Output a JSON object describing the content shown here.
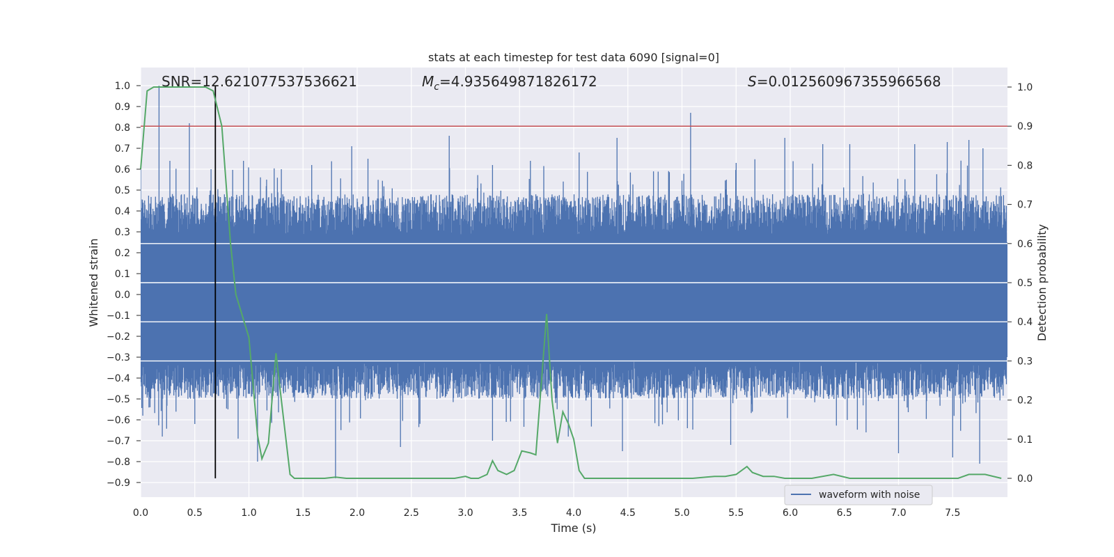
{
  "chart_data": {
    "type": "line",
    "title": "stats at each timestep for test data 6090 [signal=0]",
    "xlabel": "Time (s)",
    "ylabel_left": "Whitened strain",
    "ylabel_right": "Detection probability",
    "xlim": [
      0.0,
      8.0
    ],
    "ylim_left": [
      -0.97,
      1.09
    ],
    "ylim_right": [
      -0.05,
      1.05
    ],
    "xticks": [
      "0.0",
      "0.5",
      "1.0",
      "1.5",
      "2.0",
      "2.5",
      "3.0",
      "3.5",
      "4.0",
      "4.5",
      "5.0",
      "5.5",
      "6.0",
      "6.5",
      "7.0",
      "7.5"
    ],
    "yticks_left": [
      "1.0",
      "0.9",
      "0.8",
      "0.7",
      "0.6",
      "0.5",
      "0.4",
      "0.3",
      "0.2",
      "0.1",
      "0.0",
      "-0.1",
      "-0.2",
      "-0.3",
      "-0.4",
      "-0.5",
      "-0.6",
      "-0.7",
      "-0.8",
      "-0.9"
    ],
    "yticks_right": [
      "1.0",
      "0.9",
      "0.8",
      "0.7",
      "0.6",
      "0.5",
      "0.4",
      "0.3",
      "0.2",
      "0.1",
      "0.0"
    ],
    "annotations": {
      "snr": "SNR=12.621077537536621",
      "mc_symbol": "M",
      "mc_sub": "c",
      "mc_value": "=4.935649871826172",
      "s_symbol": "S",
      "s_value": "=0.012560967355966568"
    },
    "legend": {
      "label": "waveform with noise",
      "placement": "lower-right"
    },
    "threshold_line": {
      "value_right_axis": 0.9,
      "color": "#c44e52"
    },
    "vertical_marker": {
      "x": 0.69,
      "y_range_left": [
        -0.88,
        1.0
      ],
      "color": "#000000"
    },
    "colors": {
      "waveform": "#4c72b0",
      "probability": "#55a868",
      "plot_bg": "#eaeaf2",
      "grid": "#ffffff"
    },
    "waveform_series": {
      "name": "waveform with noise",
      "band_peaks": [
        {
          "x": 0.17,
          "y": 1.0
        },
        {
          "x": 0.45,
          "y": 0.82
        },
        {
          "x": 0.0,
          "y": 0.6
        },
        {
          "x": 0.27,
          "y": 0.64
        },
        {
          "x": 0.65,
          "y": 0.6
        },
        {
          "x": 0.95,
          "y": 0.64
        },
        {
          "x": 1.3,
          "y": 0.6
        },
        {
          "x": 1.58,
          "y": 0.62
        },
        {
          "x": 1.95,
          "y": 0.71
        },
        {
          "x": 2.1,
          "y": 0.65
        },
        {
          "x": 2.85,
          "y": 0.76
        },
        {
          "x": 3.25,
          "y": 0.62
        },
        {
          "x": 3.6,
          "y": 0.64
        },
        {
          "x": 4.05,
          "y": 0.68
        },
        {
          "x": 4.4,
          "y": 0.75
        },
        {
          "x": 5.08,
          "y": 0.87
        },
        {
          "x": 5.5,
          "y": 0.63
        },
        {
          "x": 5.95,
          "y": 0.75
        },
        {
          "x": 6.3,
          "y": 0.72
        },
        {
          "x": 6.55,
          "y": 0.72
        },
        {
          "x": 7.15,
          "y": 0.72
        },
        {
          "x": 7.45,
          "y": 0.73
        },
        {
          "x": 7.65,
          "y": 0.74
        },
        {
          "x": 7.78,
          "y": 0.7
        }
      ],
      "band_troughs": [
        {
          "x": 0.02,
          "y": -0.58
        },
        {
          "x": 0.2,
          "y": -0.68
        },
        {
          "x": 0.5,
          "y": -0.62
        },
        {
          "x": 0.9,
          "y": -0.69
        },
        {
          "x": 1.08,
          "y": -0.8
        },
        {
          "x": 1.8,
          "y": -0.88
        },
        {
          "x": 2.4,
          "y": -0.73
        },
        {
          "x": 3.25,
          "y": -0.7
        },
        {
          "x": 3.95,
          "y": -0.68
        },
        {
          "x": 4.45,
          "y": -0.75
        },
        {
          "x": 5.05,
          "y": -0.64
        },
        {
          "x": 5.45,
          "y": -0.72
        },
        {
          "x": 6.7,
          "y": -0.66
        },
        {
          "x": 7.0,
          "y": -0.76
        },
        {
          "x": 7.5,
          "y": -0.78
        },
        {
          "x": 7.75,
          "y": -0.81
        }
      ]
    },
    "probability_series": {
      "name": "detection probability",
      "x": [
        0.0,
        0.06,
        0.12,
        0.2,
        0.3,
        0.4,
        0.5,
        0.6,
        0.67,
        0.75,
        0.83,
        0.88,
        1.0,
        1.08,
        1.12,
        1.18,
        1.25,
        1.3,
        1.38,
        1.42,
        1.55,
        1.7,
        1.8,
        1.9,
        2.1,
        2.3,
        2.5,
        2.7,
        2.9,
        3.0,
        3.05,
        3.12,
        3.2,
        3.25,
        3.3,
        3.38,
        3.45,
        3.52,
        3.6,
        3.65,
        3.75,
        3.8,
        3.85,
        3.9,
        3.95,
        4.0,
        4.05,
        4.1,
        4.3,
        4.5,
        4.7,
        4.9,
        5.1,
        5.3,
        5.4,
        5.5,
        5.6,
        5.65,
        5.75,
        5.85,
        5.95,
        6.05,
        6.2,
        6.4,
        6.55,
        6.8,
        7.0,
        7.3,
        7.55,
        7.65,
        7.8,
        7.95
      ],
      "y": [
        0.79,
        0.99,
        1.0,
        1.0,
        1.0,
        1.0,
        1.0,
        1.0,
        0.99,
        0.9,
        0.6,
        0.47,
        0.36,
        0.11,
        0.05,
        0.09,
        0.32,
        0.2,
        0.01,
        0.0,
        0.0,
        0.0,
        0.003,
        0.0,
        0.0,
        0.0,
        0.0,
        0.0,
        0.0,
        0.005,
        0.0,
        0.0,
        0.01,
        0.045,
        0.02,
        0.01,
        0.02,
        0.07,
        0.065,
        0.06,
        0.42,
        0.2,
        0.09,
        0.17,
        0.14,
        0.1,
        0.02,
        0.0,
        0.0,
        0.0,
        0.0,
        0.0,
        0.0,
        0.005,
        0.005,
        0.01,
        0.03,
        0.015,
        0.005,
        0.005,
        0.0,
        0.0,
        0.0,
        0.01,
        0.0,
        0.0,
        0.0,
        0.0,
        0.0,
        0.01,
        0.01,
        0.0
      ]
    }
  }
}
